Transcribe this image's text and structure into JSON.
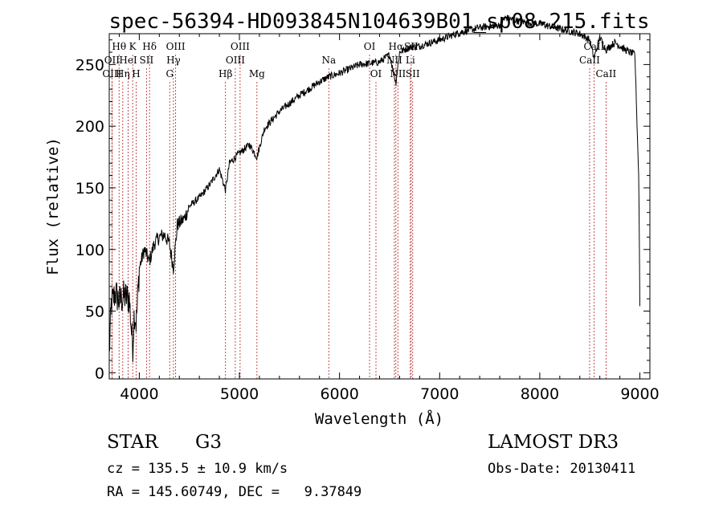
{
  "chart_data": {
    "type": "line",
    "title": "spec-56394-HD093845N104639B01_sp08-215.fits",
    "xlabel": "Wavelength (Å)",
    "ylabel": "Flux (relative)",
    "xlim": [
      3700,
      9100
    ],
    "ylim": [
      -5,
      275
    ],
    "xticks": [
      4000,
      5000,
      6000,
      7000,
      8000,
      9000
    ],
    "yticks": [
      0,
      50,
      100,
      150,
      200,
      250
    ],
    "series": [
      {
        "name": "spectrum",
        "x": [
          3700,
          3720,
          3760,
          3800,
          3850,
          3900,
          3935,
          3950,
          3970,
          4000,
          4050,
          4101,
          4150,
          4200,
          4250,
          4300,
          4340,
          4380,
          4450,
          4500,
          4600,
          4700,
          4800,
          4861,
          4900,
          5000,
          5100,
          5175,
          5250,
          5400,
          5600,
          5800,
          5890,
          6000,
          6200,
          6400,
          6500,
          6563,
          6600,
          6700,
          6800,
          7000,
          7200,
          7400,
          7600,
          7660,
          7800,
          8000,
          8200,
          8400,
          8498,
          8542,
          8600,
          8662,
          8750,
          8850,
          8950,
          8990,
          9000
        ],
        "y": [
          15,
          55,
          65,
          58,
          62,
          60,
          20,
          50,
          40,
          85,
          100,
          90,
          105,
          110,
          112,
          105,
          85,
          120,
          125,
          135,
          142,
          152,
          165,
          148,
          170,
          178,
          185,
          175,
          198,
          212,
          225,
          236,
          240,
          243,
          250,
          252,
          258,
          235,
          260,
          264,
          265,
          270,
          276,
          280,
          282,
          288,
          285,
          283,
          279,
          275,
          270,
          255,
          272,
          262,
          268,
          262,
          258,
          155,
          55
        ]
      }
    ],
    "lines": [
      {
        "label": "Hθ",
        "x": 3798,
        "row": 1
      },
      {
        "label": "OII",
        "x": 3727,
        "row": 2
      },
      {
        "label": "OIII",
        "x": 3727,
        "row": 3
      },
      {
        "label": "K",
        "x": 3934,
        "row": 1
      },
      {
        "label": "HeI",
        "x": 3889,
        "row": 2
      },
      {
        "label": "Hη",
        "x": 3835,
        "row": 3
      },
      {
        "label": "Hδ",
        "x": 4102,
        "row": 1
      },
      {
        "label": "SII",
        "x": 4072,
        "row": 2
      },
      {
        "label": "H",
        "x": 3969,
        "row": 3
      },
      {
        "label": "OIII",
        "x": 4363,
        "row": 1
      },
      {
        "label": "Hγ",
        "x": 4341,
        "row": 2
      },
      {
        "label": "G",
        "x": 4304,
        "row": 3
      },
      {
        "label": "OIII",
        "x": 5007,
        "row": 1
      },
      {
        "label": "OIII",
        "x": 4959,
        "row": 2
      },
      {
        "label": "Hβ",
        "x": 4861,
        "row": 3
      },
      {
        "label": "Mg",
        "x": 5175,
        "row": 3
      },
      {
        "label": "Na",
        "x": 5893,
        "row": 2
      },
      {
        "label": "OI",
        "x": 6300,
        "row": 1
      },
      {
        "label": "OI",
        "x": 6364,
        "row": 3
      },
      {
        "label": "Hα",
        "x": 6563,
        "row": 1
      },
      {
        "label": "SII",
        "x": 6716,
        "row": 1
      },
      {
        "label": "NII",
        "x": 6548,
        "row": 2
      },
      {
        "label": "Li",
        "x": 6707,
        "row": 2
      },
      {
        "label": "NII",
        "x": 6583,
        "row": 3
      },
      {
        "label": "SII",
        "x": 6731,
        "row": 3
      },
      {
        "label": "CaII",
        "x": 8542,
        "row": 1
      },
      {
        "label": "CaII",
        "x": 8498,
        "row": 2
      },
      {
        "label": "CaII",
        "x": 8662,
        "row": 3
      }
    ]
  },
  "info": {
    "object_type": "STAR",
    "subclass": "G3",
    "survey": "LAMOST DR3",
    "redshift": "cz = 135.5 ± 10.9 km/s",
    "obs_date": "Obs-Date: 20130411",
    "coords": "RA = 145.60749, DEC =   9.37849"
  }
}
